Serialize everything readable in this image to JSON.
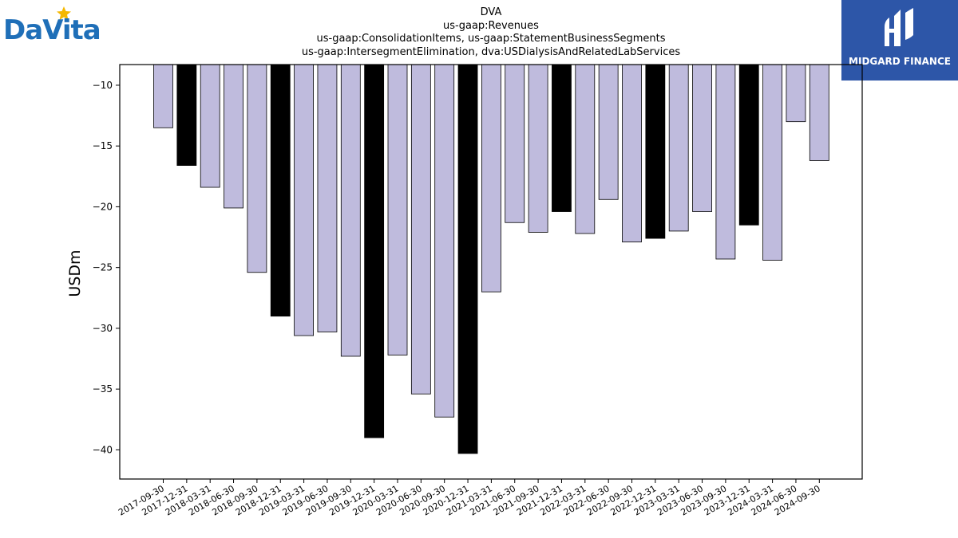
{
  "logos": {
    "left_text": "DaVita",
    "right_text": "MIDGARD FINANCE"
  },
  "colors": {
    "bar_default": "#bfbbdd",
    "bar_highlight": "#000000",
    "logo_blue": "#1f6fb8",
    "logo_star": "#f5b800",
    "midgard_bg": "#2d56a8"
  },
  "chart_data": {
    "type": "bar",
    "title_lines": [
      "DVA",
      "us-gaap:Revenues",
      "us-gaap:ConsolidationItems, us-gaap:StatementBusinessSegments",
      "us-gaap:IntersegmentElimination, dva:USDialysisAndRelatedLabServices"
    ],
    "ylabel": "USDm",
    "xlabel": "",
    "ylim": [
      -42.4,
      -8.3
    ],
    "yticks": [
      -10,
      -15,
      -20,
      -25,
      -30,
      -35,
      -40
    ],
    "ytick_labels": [
      "−10",
      "−15",
      "−20",
      "−25",
      "−30",
      "−35",
      "−40"
    ],
    "categories": [
      "2017-09-30",
      "2017-12-31",
      "2018-03-31",
      "2018-06-30",
      "2018-09-30",
      "2018-12-31",
      "2019-03-31",
      "2019-06-30",
      "2019-09-30",
      "2019-12-31",
      "2020-03-31",
      "2020-06-30",
      "2020-09-30",
      "2020-12-31",
      "2021-03-31",
      "2021-06-30",
      "2021-09-30",
      "2021-12-31",
      "2022-03-31",
      "2022-06-30",
      "2022-09-30",
      "2022-12-31",
      "2023-03-31",
      "2023-06-30",
      "2023-09-30",
      "2023-12-31",
      "2024-03-31",
      "2024-06-30",
      "2024-09-30"
    ],
    "values": [
      -13.5,
      -16.6,
      -18.4,
      -20.1,
      -25.4,
      -29.0,
      -30.6,
      -30.3,
      -32.3,
      -39.0,
      -32.2,
      -35.4,
      -37.3,
      -40.3,
      -27.0,
      -21.3,
      -22.1,
      -20.4,
      -22.2,
      -19.4,
      -22.9,
      -22.6,
      -22.0,
      -20.4,
      -24.3,
      -21.5,
      -24.4,
      -13.0,
      -16.2
    ],
    "highlight": [
      false,
      true,
      false,
      false,
      false,
      true,
      false,
      false,
      false,
      true,
      false,
      false,
      false,
      true,
      false,
      false,
      false,
      true,
      false,
      false,
      false,
      true,
      false,
      false,
      false,
      true,
      false,
      false,
      false
    ],
    "grid": false,
    "legend": "none"
  }
}
